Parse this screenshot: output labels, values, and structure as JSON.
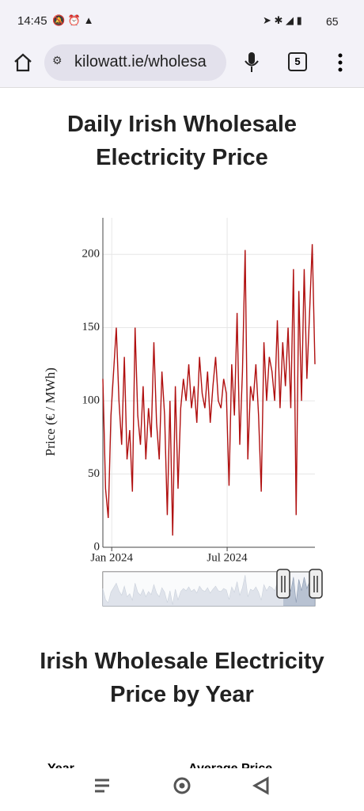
{
  "status_bar": {
    "time": "14:45",
    "battery": "65"
  },
  "browser": {
    "url": "kilowatt.ie/wholesa",
    "tab_count": "5"
  },
  "chart_data": {
    "type": "line",
    "title": "Daily Irish Wholesale Electricity Price",
    "y_label": "Price (€ / MWh)",
    "color": "#b01010",
    "grid": true,
    "values": [
      115,
      40,
      20,
      90,
      120,
      150,
      100,
      70,
      130,
      60,
      80,
      38,
      150,
      90,
      70,
      110,
      60,
      95,
      75,
      140,
      85,
      60,
      120,
      90,
      22,
      100,
      8,
      110,
      40,
      95,
      115,
      100,
      125,
      95,
      110,
      85,
      130,
      105,
      95,
      120,
      85,
      110,
      130,
      100,
      95,
      115,
      105,
      42,
      125,
      90,
      160,
      70,
      120,
      203,
      60,
      110,
      100,
      125,
      90,
      38,
      140,
      100,
      130,
      120,
      100,
      155,
      95,
      140,
      110,
      150,
      95,
      190,
      22,
      175,
      100,
      190,
      115,
      160,
      207,
      125
    ],
    "xlim": [
      0,
      79
    ],
    "xticks": [
      {
        "value": 3.3,
        "label": "Jan 2024"
      },
      {
        "value": 46.3,
        "label": "Jul 2024"
      }
    ],
    "ylim": [
      0,
      225
    ],
    "yticks": [
      0,
      50,
      100,
      150,
      200
    ]
  },
  "section": {
    "heading": "Irish Wholesale Electricity Price by Year",
    "table_headers": [
      "Year",
      "Average Price"
    ]
  }
}
